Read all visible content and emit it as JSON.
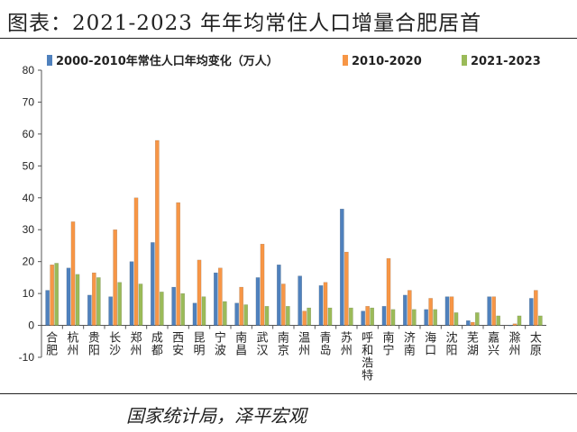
{
  "header": {
    "title": "图表：2021-2023 年年均常住人口增量合肥居首"
  },
  "footer": {
    "source": "国家统计局，泽平宏观"
  },
  "chart_data": {
    "type": "bar",
    "title": "",
    "xlabel": "",
    "ylabel": "",
    "ylim": [
      -10,
      80
    ],
    "yticks": [
      -10,
      0,
      10,
      20,
      30,
      40,
      50,
      60,
      70,
      80
    ],
    "grid": false,
    "legend_position": "top",
    "categories": [
      "合肥",
      "杭州",
      "贵阳",
      "长沙",
      "郑州",
      "成都",
      "西安",
      "昆明",
      "宁波",
      "南昌",
      "武汉",
      "南京",
      "温州",
      "青岛",
      "苏州",
      "呼和浩特",
      "南宁",
      "济南",
      "海口",
      "沈阳",
      "芜湖",
      "嘉兴",
      "滁州",
      "太原"
    ],
    "series": [
      {
        "name": "2000-2010年常住人口年均变化（万人）",
        "color": "#4f81bd",
        "values": [
          11,
          18,
          9.5,
          9,
          20,
          26,
          12,
          7,
          16.5,
          7,
          15,
          19,
          15.5,
          12.5,
          36.5,
          4.5,
          6,
          9.5,
          5,
          9,
          1.5,
          9,
          0,
          8.5
        ]
      },
      {
        "name": "2010-2020",
        "color": "#f79646",
        "values": [
          19,
          32.5,
          16.5,
          30,
          40,
          58,
          38.5,
          20.5,
          18,
          12,
          25.5,
          13,
          4.5,
          13.5,
          23,
          6,
          21,
          11,
          8.5,
          9,
          1,
          9,
          0.5,
          11
        ]
      },
      {
        "name": "2021-2023",
        "color": "#9bbb59",
        "values": [
          19.5,
          16,
          15,
          13.5,
          13,
          10.5,
          10,
          9,
          7.5,
          6.5,
          6,
          6,
          5.5,
          5.5,
          5.5,
          5.5,
          5,
          5,
          5,
          4,
          4,
          3,
          3,
          3
        ]
      }
    ]
  }
}
